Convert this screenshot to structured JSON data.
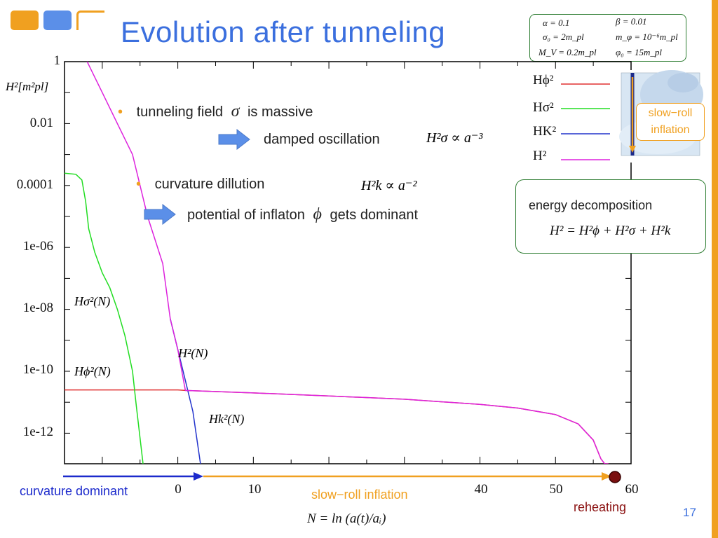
{
  "slide": {
    "title": "Evolution after tunneling",
    "page_number": "17",
    "colors": {
      "title": "#3b6fde",
      "accent_orange": "#f0a020",
      "blue_deco": "#5b8fe8",
      "box_border": "#2e7d32"
    }
  },
  "params": {
    "alpha": "α = 0.1",
    "beta": "β = 0.01",
    "sigma0": "σ₀ = 2m_pl",
    "mphi": "m_φ = 10⁻⁶m_pl",
    "MV": "M_V = 0.2m_pl",
    "phi0": "φ₀ = 15m_pl"
  },
  "bullets": {
    "b1": "tunneling field",
    "b1_sym": "σ",
    "b1_tail": "is massive",
    "b1_sub": "damped oscillation",
    "b1_formula": "H²σ ∝ a⁻³",
    "b2": "curvature dillution",
    "b2_formula": "H²k ∝ a⁻²",
    "b2_sub": "potential of inflaton",
    "b2_sym": "ϕ",
    "b2_tail": "gets dominant"
  },
  "energy": {
    "label": "energy decomposition",
    "formula": "H² = H²ϕ + H²σ + H²k"
  },
  "inset": {
    "label": "slow−roll inflation"
  },
  "bottom": {
    "curvature_dominant": "curvature dominant",
    "slow_roll": "slow−roll inflation",
    "reheating": "reheating",
    "xaxis": "N = ln (a(t)/aᵢ)"
  },
  "chart_data": {
    "type": "line",
    "title": "",
    "xlabel": "N = ln (a(t)/aᵢ)",
    "ylabel": "H²[m²pl]",
    "yscale": "log",
    "xlim": [
      -15,
      60
    ],
    "ylim": [
      1e-14,
      1
    ],
    "x_ticks": [
      "0",
      "10",
      "40",
      "50",
      "60"
    ],
    "y_ticks": [
      "1",
      "0.01",
      "0.0001",
      "1e-06",
      "1e-08",
      "1e-10",
      "1e-12"
    ],
    "legend": [
      "Hϕ²",
      "Hσ²",
      "HK²",
      "H²"
    ],
    "annotations": [
      "Hσ²(N)",
      "Hϕ²(N)",
      "H²(N)",
      "Hk²(N)"
    ],
    "series": [
      {
        "name": "Hϕ²",
        "color": "#e03030",
        "x": [
          -15,
          0,
          1,
          10,
          20,
          30,
          40,
          45,
          50,
          53,
          55,
          56,
          56.5,
          57
        ],
        "y": [
          2.5e-11,
          2.5e-11,
          2.4e-11,
          2e-11,
          1.6e-11,
          1.25e-11,
          8.5e-12,
          6.5e-12,
          4e-12,
          2e-12,
          6e-13,
          1.5e-13,
          5e-14,
          1e-14
        ]
      },
      {
        "name": "Hσ²",
        "color": "#22dd22",
        "x": [
          -15,
          -13.5,
          -12.7,
          -12.2,
          -11.8,
          -11,
          -10,
          -9,
          -8,
          -7,
          -6,
          -5.5,
          -4.6
        ],
        "y": [
          0.00025,
          0.00023,
          0.00015,
          3e-05,
          4e-06,
          7e-07,
          1.5e-07,
          5e-08,
          1e-08,
          1.4e-09,
          1e-10,
          8e-12,
          1e-14
        ]
      },
      {
        "name": "HK²",
        "color": "#2233cc",
        "x": [
          -1,
          0,
          1,
          2,
          3
        ],
        "y": [
          5e-09,
          5e-10,
          5e-11,
          5e-12,
          1e-14
        ]
      },
      {
        "name": "H²",
        "color": "#dd22dd",
        "x": [
          -12,
          -10,
          -8,
          -6,
          -4,
          -2,
          -1,
          0,
          1,
          10,
          20,
          30,
          40,
          45,
          50,
          53,
          55,
          56,
          56.5,
          57
        ],
        "y": [
          1,
          0.1,
          0.01,
          0.001,
          1e-05,
          3e-07,
          5e-09,
          5e-10,
          2.4e-11,
          2e-11,
          1.6e-11,
          1.25e-11,
          8.5e-12,
          6.5e-12,
          4e-12,
          2e-12,
          6e-13,
          1.5e-13,
          5e-14,
          1e-14
        ]
      }
    ]
  }
}
